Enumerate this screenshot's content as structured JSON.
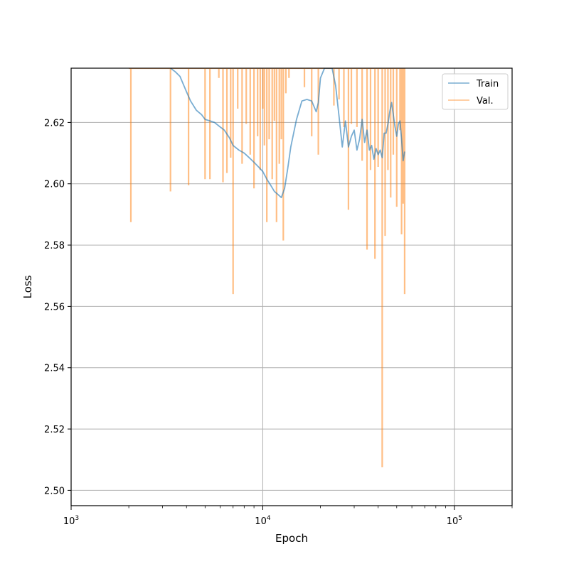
{
  "chart_data": {
    "type": "line",
    "title": "",
    "xlabel": "Epoch",
    "ylabel": "Loss",
    "xscale": "log",
    "xlim": [
      1000,
      200000
    ],
    "ylim": [
      2.495,
      2.6377
    ],
    "grid": true,
    "legend_position": "top-right",
    "x_tick_labels": [
      {
        "value": 1000,
        "base": "10",
        "exp": "3"
      },
      {
        "value": 10000,
        "base": "10",
        "exp": "4"
      },
      {
        "value": 100000,
        "base": "10",
        "exp": "5"
      }
    ],
    "y_ticks": [
      2.5,
      2.52,
      2.54,
      2.56,
      2.58,
      2.6,
      2.62
    ],
    "y_tick_labels": [
      "2.50",
      "2.52",
      "2.54",
      "2.56",
      "2.58",
      "2.60",
      "2.62"
    ],
    "series": [
      {
        "name": "Train",
        "color": "#1f77b4",
        "opacity": 0.6,
        "x": [
          3300,
          3500,
          3700,
          4000,
          4200,
          4500,
          4800,
          5000,
          5300,
          5600,
          6000,
          6300,
          6700,
          7000,
          7500,
          8000,
          8500,
          9000,
          9500,
          10000,
          10500,
          11000,
          11500,
          12000,
          12500,
          13000,
          13500,
          14000,
          15000,
          16000,
          17000,
          18000,
          19000,
          19500,
          20000,
          21000,
          22000,
          23000,
          24000,
          25000,
          26000,
          27000,
          28000,
          29000,
          30000,
          31000,
          32000,
          33000,
          34000,
          35000,
          36000,
          37000,
          38000,
          39000,
          40000,
          41000,
          42000,
          43000,
          44000,
          45000,
          46000,
          47000,
          48000,
          49000,
          50000,
          51000,
          52000,
          53000,
          54000,
          55000
        ],
        "y": [
          2.6377,
          2.6365,
          2.635,
          2.63,
          2.627,
          2.624,
          2.6225,
          2.621,
          2.6205,
          2.62,
          2.6185,
          2.6175,
          2.615,
          2.6125,
          2.611,
          2.61,
          2.6085,
          2.607,
          2.6055,
          2.604,
          2.6015,
          2.5995,
          2.5975,
          2.5965,
          2.5955,
          2.5985,
          2.605,
          2.612,
          2.621,
          2.627,
          2.6275,
          2.627,
          2.6235,
          2.6265,
          2.6345,
          2.6377,
          2.6377,
          2.6377,
          2.632,
          2.622,
          2.612,
          2.6205,
          2.612,
          2.6155,
          2.6175,
          2.611,
          2.6145,
          2.621,
          2.6135,
          2.6175,
          2.611,
          2.6125,
          2.608,
          2.6115,
          2.6095,
          2.611,
          2.6085,
          2.6165,
          2.6165,
          2.6195,
          2.6235,
          2.6265,
          2.6225,
          2.6185,
          2.6155,
          2.6195,
          2.6205,
          2.6145,
          2.6075,
          2.6105
        ]
      },
      {
        "name": "Val.",
        "color": "#ff7f0e",
        "opacity": 0.5,
        "spikes": [
          [
            2000,
            2.6377
          ],
          [
            2050,
            2.5875
          ],
          [
            2100,
            2.6377
          ],
          [
            3300,
            2.5975
          ],
          [
            4100,
            2.5995
          ],
          [
            5000,
            2.6015
          ],
          [
            5300,
            2.6015
          ],
          [
            5900,
            2.6345
          ],
          [
            6200,
            2.6005
          ],
          [
            6500,
            2.6035
          ],
          [
            6800,
            2.6085
          ],
          [
            7000,
            2.564
          ],
          [
            7400,
            2.6245
          ],
          [
            7800,
            2.6065
          ],
          [
            8200,
            2.6195
          ],
          [
            8600,
            2.6095
          ],
          [
            9000,
            2.5985
          ],
          [
            9400,
            2.6155
          ],
          [
            9700,
            2.6045
          ],
          [
            10000,
            2.6245
          ],
          [
            10200,
            2.6125
          ],
          [
            10500,
            2.5875
          ],
          [
            10800,
            2.6145
          ],
          [
            11200,
            2.6015
          ],
          [
            11500,
            2.6205
          ],
          [
            11800,
            2.5875
          ],
          [
            12200,
            2.6065
          ],
          [
            12500,
            2.6145
          ],
          [
            12800,
            2.5815
          ],
          [
            13200,
            2.6295
          ],
          [
            13700,
            2.6345
          ],
          [
            16500,
            2.6315
          ],
          [
            18000,
            2.6155
          ],
          [
            19500,
            2.6095
          ],
          [
            23500,
            2.6255
          ],
          [
            25000,
            2.6275
          ],
          [
            26500,
            2.6185
          ],
          [
            28000,
            2.5915
          ],
          [
            29000,
            2.6195
          ],
          [
            31000,
            2.6185
          ],
          [
            33000,
            2.6075
          ],
          [
            35000,
            2.5785
          ],
          [
            36500,
            2.6045
          ],
          [
            38500,
            2.5755
          ],
          [
            40000,
            2.6055
          ],
          [
            42000,
            2.5075
          ],
          [
            43500,
            2.583
          ],
          [
            45000,
            2.6045
          ],
          [
            46500,
            2.5955
          ],
          [
            48000,
            2.6095
          ],
          [
            50000,
            2.5925
          ],
          [
            52000,
            2.6175
          ],
          [
            53000,
            2.5835
          ],
          [
            54000,
            2.5935
          ],
          [
            55000,
            2.564
          ]
        ]
      }
    ]
  }
}
